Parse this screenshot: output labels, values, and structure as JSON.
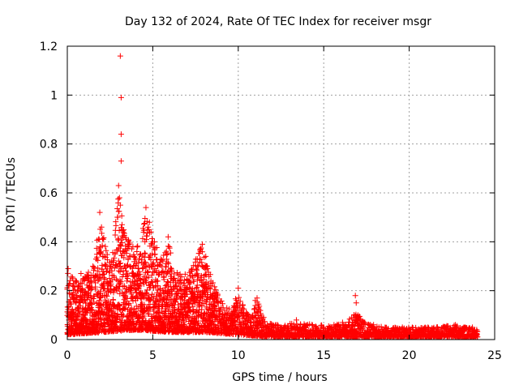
{
  "chart_data": {
    "type": "scatter",
    "title": "Day 132 of 2024, Rate Of TEC Index for receiver msgr",
    "xlabel": "GPS time / hours",
    "ylabel": "ROTI / TECUs",
    "xlim": [
      0,
      25
    ],
    "ylim": [
      0,
      1.2
    ],
    "xticks": [
      0,
      5,
      10,
      15,
      20,
      25
    ],
    "yticks": [
      0,
      0.2,
      0.4,
      0.6,
      0.8,
      1,
      1.2
    ],
    "xtick_labels": [
      "0",
      "5",
      "10",
      "15",
      "20",
      "25"
    ],
    "ytick_labels": [
      "0",
      "0.2",
      "0.4",
      "0.6",
      "0.8",
      "1",
      "1.2"
    ],
    "grid": true,
    "marker": "+",
    "color": "#ff0000",
    "series": [
      {
        "name": "ROTI",
        "points": [
          [
            3.1,
            1.16
          ],
          [
            3.15,
            0.99
          ],
          [
            3.15,
            0.84
          ],
          [
            3.15,
            0.73
          ],
          [
            3.0,
            0.63
          ],
          [
            3.05,
            0.58
          ],
          [
            3.1,
            0.55
          ],
          [
            2.95,
            0.5
          ],
          [
            3.2,
            0.47
          ],
          [
            4.6,
            0.54
          ],
          [
            4.8,
            0.48
          ],
          [
            4.9,
            0.44
          ],
          [
            5.1,
            0.4
          ],
          [
            5.9,
            0.42
          ],
          [
            1.9,
            0.52
          ],
          [
            2.0,
            0.46
          ],
          [
            2.1,
            0.41
          ],
          [
            1.95,
            0.36
          ],
          [
            2.15,
            0.34
          ],
          [
            1.7,
            0.33
          ],
          [
            1.5,
            0.3
          ],
          [
            1.2,
            0.26
          ],
          [
            0.8,
            0.27
          ],
          [
            0.05,
            0.29
          ],
          [
            0.3,
            0.22
          ],
          [
            0.6,
            0.2
          ],
          [
            0.9,
            0.18
          ],
          [
            1.3,
            0.21
          ],
          [
            1.8,
            0.24
          ],
          [
            2.5,
            0.3
          ],
          [
            2.8,
            0.35
          ],
          [
            3.6,
            0.38
          ],
          [
            3.9,
            0.34
          ],
          [
            4.2,
            0.33
          ],
          [
            4.5,
            0.31
          ],
          [
            5.3,
            0.3
          ],
          [
            5.6,
            0.28
          ],
          [
            6.2,
            0.24
          ],
          [
            6.8,
            0.23
          ],
          [
            7.2,
            0.26
          ],
          [
            7.6,
            0.33
          ],
          [
            7.8,
            0.37
          ],
          [
            7.9,
            0.39
          ],
          [
            8.1,
            0.34
          ],
          [
            8.2,
            0.29
          ],
          [
            8.4,
            0.22
          ],
          [
            8.6,
            0.19
          ],
          [
            9.0,
            0.13
          ],
          [
            9.5,
            0.1
          ],
          [
            9.9,
            0.16
          ],
          [
            10.0,
            0.21
          ],
          [
            10.2,
            0.12
          ],
          [
            10.6,
            0.09
          ],
          [
            11.0,
            0.16
          ],
          [
            11.1,
            0.17
          ],
          [
            11.3,
            0.1
          ],
          [
            11.7,
            0.06
          ],
          [
            12.3,
            0.06
          ],
          [
            12.8,
            0.05
          ],
          [
            13.4,
            0.08
          ],
          [
            13.9,
            0.05
          ],
          [
            14.5,
            0.05
          ],
          [
            15.0,
            0.05
          ],
          [
            15.6,
            0.06
          ],
          [
            16.1,
            0.07
          ],
          [
            16.5,
            0.06
          ],
          [
            16.85,
            0.18
          ],
          [
            16.9,
            0.15
          ],
          [
            17.0,
            0.1
          ],
          [
            17.4,
            0.07
          ],
          [
            17.9,
            0.05
          ],
          [
            18.5,
            0.04
          ],
          [
            19.1,
            0.04
          ],
          [
            19.6,
            0.05
          ],
          [
            20.0,
            0.04
          ],
          [
            20.6,
            0.04
          ],
          [
            21.1,
            0.05
          ],
          [
            21.6,
            0.05
          ],
          [
            22.2,
            0.04
          ],
          [
            22.7,
            0.06
          ],
          [
            23.2,
            0.05
          ],
          [
            23.7,
            0.05
          ],
          [
            23.95,
            0.04
          ],
          [
            0.2,
            0.1
          ],
          [
            0.5,
            0.12
          ],
          [
            1.0,
            0.09
          ],
          [
            1.6,
            0.11
          ],
          [
            2.3,
            0.15
          ],
          [
            2.7,
            0.14
          ],
          [
            3.3,
            0.18
          ],
          [
            3.7,
            0.2
          ],
          [
            4.0,
            0.16
          ],
          [
            4.4,
            0.19
          ],
          [
            4.7,
            0.17
          ],
          [
            5.0,
            0.22
          ],
          [
            5.4,
            0.18
          ],
          [
            5.8,
            0.15
          ],
          [
            6.4,
            0.17
          ],
          [
            6.9,
            0.13
          ],
          [
            7.4,
            0.16
          ],
          [
            8.0,
            0.2
          ],
          [
            8.5,
            0.12
          ],
          [
            9.2,
            0.08
          ],
          [
            9.7,
            0.07
          ],
          [
            10.4,
            0.06
          ],
          [
            11.5,
            0.04
          ],
          [
            12.0,
            0.03
          ],
          [
            13.0,
            0.03
          ],
          [
            14.0,
            0.03
          ],
          [
            15.3,
            0.03
          ],
          [
            16.3,
            0.03
          ],
          [
            17.6,
            0.03
          ],
          [
            18.8,
            0.02
          ],
          [
            20.3,
            0.02
          ],
          [
            21.4,
            0.02
          ],
          [
            22.5,
            0.02
          ],
          [
            23.5,
            0.02
          ]
        ],
        "envelope": [
          [
            0.0,
            0.28
          ],
          [
            0.5,
            0.24
          ],
          [
            1.0,
            0.26
          ],
          [
            1.5,
            0.3
          ],
          [
            1.9,
            0.5
          ],
          [
            2.2,
            0.4
          ],
          [
            2.6,
            0.32
          ],
          [
            3.0,
            0.6
          ],
          [
            3.4,
            0.42
          ],
          [
            3.8,
            0.4
          ],
          [
            4.2,
            0.38
          ],
          [
            4.6,
            0.52
          ],
          [
            5.0,
            0.42
          ],
          [
            5.5,
            0.33
          ],
          [
            5.9,
            0.4
          ],
          [
            6.3,
            0.28
          ],
          [
            6.8,
            0.26
          ],
          [
            7.3,
            0.3
          ],
          [
            7.8,
            0.38
          ],
          [
            8.2,
            0.3
          ],
          [
            8.7,
            0.2
          ],
          [
            9.2,
            0.14
          ],
          [
            9.6,
            0.12
          ],
          [
            10.0,
            0.2
          ],
          [
            10.4,
            0.12
          ],
          [
            10.8,
            0.1
          ],
          [
            11.1,
            0.16
          ],
          [
            11.6,
            0.07
          ],
          [
            12.5,
            0.06
          ],
          [
            13.5,
            0.07
          ],
          [
            14.5,
            0.06
          ],
          [
            15.5,
            0.06
          ],
          [
            16.4,
            0.07
          ],
          [
            16.8,
            0.12
          ],
          [
            17.4,
            0.07
          ],
          [
            18.5,
            0.05
          ],
          [
            19.5,
            0.05
          ],
          [
            20.5,
            0.05
          ],
          [
            21.5,
            0.05
          ],
          [
            22.5,
            0.06
          ],
          [
            23.5,
            0.05
          ],
          [
            24.0,
            0.04
          ]
        ],
        "baseline": [
          [
            0.0,
            0.02
          ],
          [
            2.0,
            0.03
          ],
          [
            4.0,
            0.04
          ],
          [
            6.0,
            0.03
          ],
          [
            8.0,
            0.03
          ],
          [
            10.0,
            0.02
          ],
          [
            12.0,
            0.01
          ],
          [
            16.0,
            0.01
          ],
          [
            20.0,
            0.01
          ],
          [
            24.0,
            0.01
          ]
        ]
      }
    ]
  }
}
